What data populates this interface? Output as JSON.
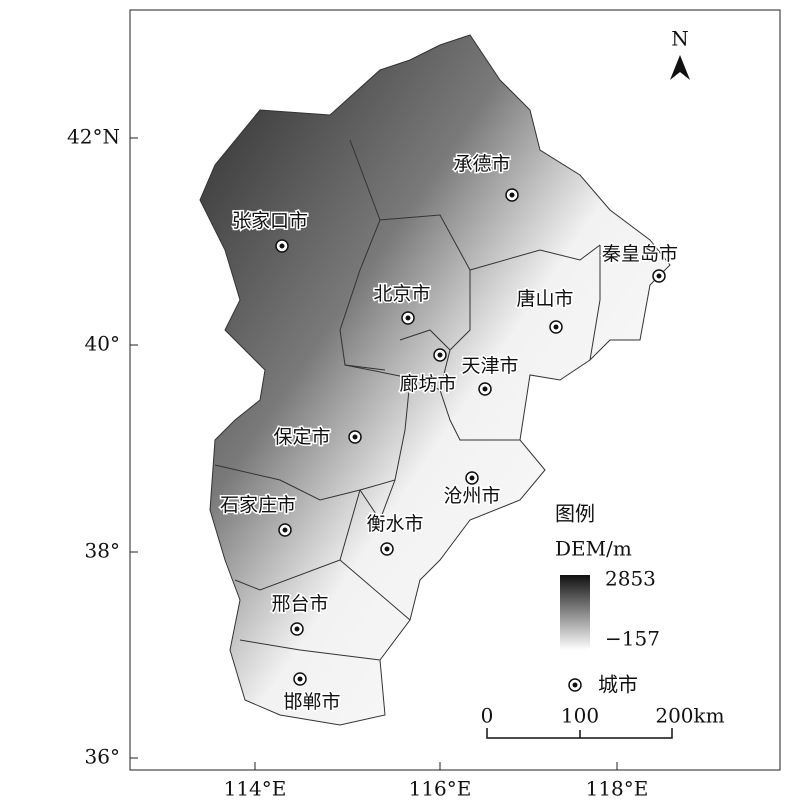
{
  "axes": {
    "y_labels": [
      "42°N",
      "40°",
      "38°",
      "36°"
    ],
    "x_labels": [
      "114°E",
      "116°E",
      "118°E"
    ]
  },
  "north": "N",
  "cities": [
    {
      "name": "张家口市"
    },
    {
      "name": "承德市"
    },
    {
      "name": "秦皇岛市"
    },
    {
      "name": "北京市"
    },
    {
      "name": "唐山市"
    },
    {
      "name": "廊坊市"
    },
    {
      "name": "天津市"
    },
    {
      "name": "保定市"
    },
    {
      "name": "沧州市"
    },
    {
      "name": "石家庄市"
    },
    {
      "name": "衡水市"
    },
    {
      "name": "邢台市"
    },
    {
      "name": "邯郸市"
    }
  ],
  "legend": {
    "title": "图例",
    "dem_label": "DEM/m",
    "dem_max": "2853",
    "dem_min": "−157",
    "city_label": "城市"
  },
  "scale_bar": {
    "labels": [
      "0",
      "100",
      "200km"
    ]
  }
}
